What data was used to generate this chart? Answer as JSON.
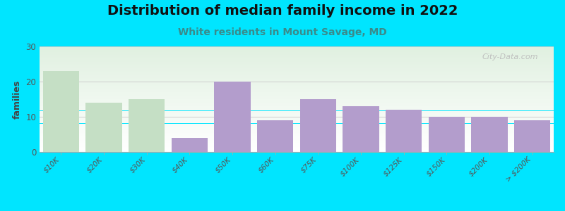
{
  "title": "Distribution of median family income in 2022",
  "subtitle": "White residents in Mount Savage, MD",
  "ylabel": "families",
  "categories": [
    "$10K",
    "$20K",
    "$30K",
    "$40K",
    "$50K",
    "$60K",
    "$75K",
    "$100K",
    "$125K",
    "$150K",
    "$200K",
    "> $200K"
  ],
  "values": [
    23,
    14,
    15,
    4,
    20,
    9,
    15,
    13,
    12,
    10,
    10,
    9
  ],
  "bar_color": "#b39dcc",
  "bar_color_green": "#c5dfc5",
  "green_indices": [
    0,
    1,
    2
  ],
  "ylim": [
    0,
    30
  ],
  "yticks": [
    0,
    10,
    20,
    30
  ],
  "background_outer": "#00e5ff",
  "bg_top_color": "#dff0df",
  "bg_bottom_color": "#ffffff",
  "grid_color": "#cccccc",
  "title_fontsize": 14,
  "subtitle_fontsize": 10,
  "ylabel_fontsize": 9,
  "tick_fontsize": 7.5,
  "watermark": "City-Data.com"
}
